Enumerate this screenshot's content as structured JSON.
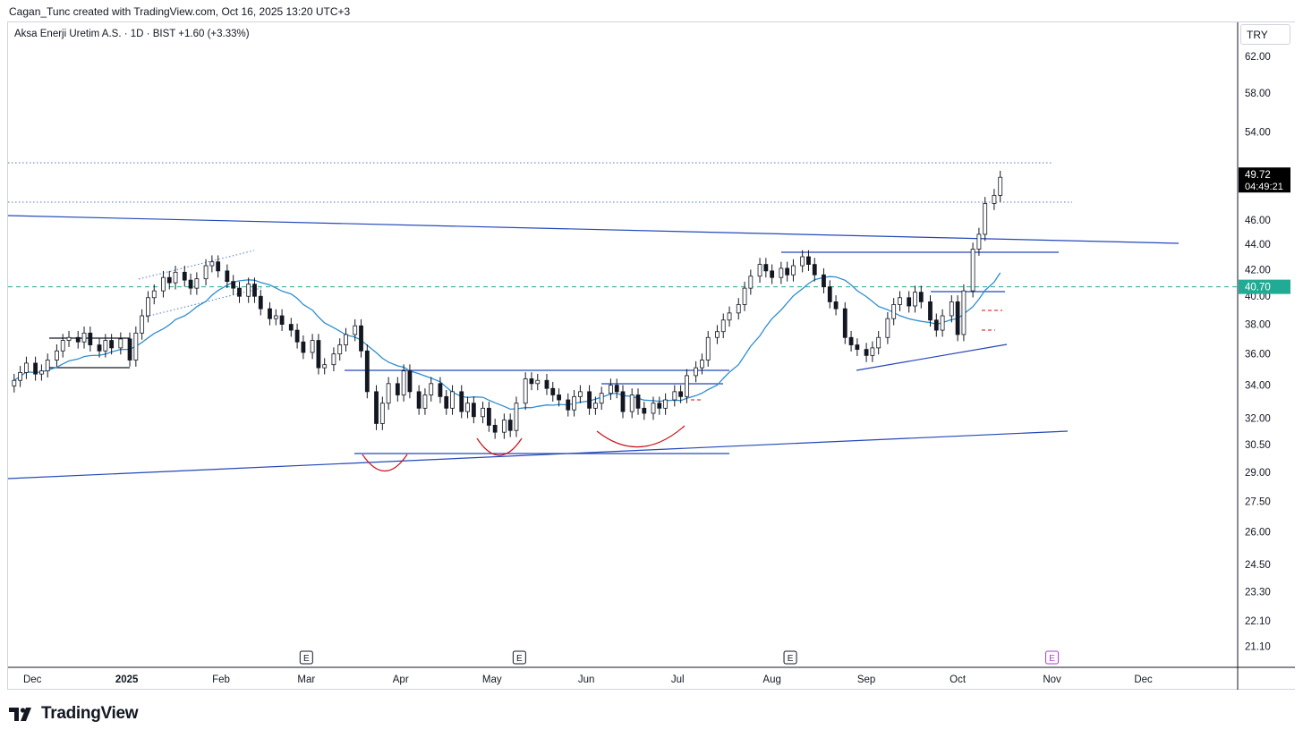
{
  "header": {
    "attribution": "Cagan_Tunc created with TradingView.com, Oct 16, 2025 13:20 UTC+3"
  },
  "symbol": {
    "name": "Aksa Enerji Uretim A.S.",
    "timeframe": "1D",
    "exchange": "BIST",
    "separator": "·",
    "change": "+1.60 (+3.33%)"
  },
  "currency": "TRY",
  "brand": {
    "name": "TradingView"
  },
  "chart_data": {
    "type": "candlestick",
    "title": "",
    "y_scale": "log",
    "ylim": [
      20.3,
      66.0
    ],
    "y_ticks": [
      "62.00",
      "58.00",
      "54.00",
      "46.00",
      "44.00",
      "42.00",
      "40.00",
      "38.00",
      "36.00",
      "34.00",
      "32.00",
      "30.50",
      "29.00",
      "27.50",
      "26.00",
      "24.50",
      "23.30",
      "22.10",
      "21.10"
    ],
    "x_ticks": [
      {
        "label": "Dec",
        "date": "2024-12-01"
      },
      {
        "label": "2025",
        "date": "2025-01-01",
        "bold": true
      },
      {
        "label": "Feb",
        "date": "2025-02-01"
      },
      {
        "label": "Mar",
        "date": "2025-03-01"
      },
      {
        "label": "Apr",
        "date": "2025-04-01"
      },
      {
        "label": "May",
        "date": "2025-05-01"
      },
      {
        "label": "Jun",
        "date": "2025-06-01"
      },
      {
        "label": "Jul",
        "date": "2025-07-01"
      },
      {
        "label": "Aug",
        "date": "2025-08-01"
      },
      {
        "label": "Sep",
        "date": "2025-09-01"
      },
      {
        "label": "Oct",
        "date": "2025-10-01"
      },
      {
        "label": "Nov",
        "date": "2025-11-01"
      },
      {
        "label": "Dec",
        "date": "2025-12-01"
      }
    ],
    "xlim": [
      "2024-11-23",
      "2026-01-01"
    ],
    "last_price": {
      "label": "49.72",
      "value": 49.72,
      "countdown": "04:49:21",
      "color": "#000000"
    },
    "reference_price": {
      "label": "40.70",
      "value": 40.7,
      "color": "#22ab94"
    },
    "earnings_markers": [
      {
        "date": "2025-03-01",
        "label": "E",
        "upcoming": false
      },
      {
        "date": "2025-05-10",
        "label": "E",
        "upcoming": false
      },
      {
        "date": "2025-08-07",
        "label": "E",
        "upcoming": false
      },
      {
        "date": "2025-11-01",
        "label": "E",
        "upcoming": true
      }
    ],
    "candles_closes": [
      [
        "2024-11-25",
        34.3
      ],
      [
        "2024-11-27",
        34.8
      ],
      [
        "2024-11-29",
        35.4
      ],
      [
        "2024-12-02",
        34.7
      ],
      [
        "2024-12-04",
        34.9
      ],
      [
        "2024-12-06",
        35.6
      ],
      [
        "2024-12-09",
        36.2
      ],
      [
        "2024-12-11",
        36.9
      ],
      [
        "2024-12-13",
        37.1
      ],
      [
        "2024-12-16",
        36.8
      ],
      [
        "2024-12-18",
        37.4
      ],
      [
        "2024-12-20",
        36.6
      ],
      [
        "2024-12-23",
        36.2
      ],
      [
        "2024-12-25",
        36.9
      ],
      [
        "2024-12-27",
        36.4
      ],
      [
        "2024-12-30",
        37.0
      ],
      [
        "2025-01-02",
        35.6
      ],
      [
        "2025-01-04",
        37.4
      ],
      [
        "2025-01-06",
        38.6
      ],
      [
        "2025-01-08",
        39.9
      ],
      [
        "2025-01-10",
        40.4
      ],
      [
        "2025-01-13",
        41.4
      ],
      [
        "2025-01-15",
        41.0
      ],
      [
        "2025-01-17",
        41.8
      ],
      [
        "2025-01-20",
        41.2
      ],
      [
        "2025-01-22",
        40.6
      ],
      [
        "2025-01-24",
        41.3
      ],
      [
        "2025-01-27",
        42.3
      ],
      [
        "2025-01-29",
        42.6
      ],
      [
        "2025-01-31",
        41.9
      ],
      [
        "2025-02-03",
        41.1
      ],
      [
        "2025-02-05",
        40.6
      ],
      [
        "2025-02-07",
        40.0
      ],
      [
        "2025-02-10",
        40.9
      ],
      [
        "2025-02-12",
        40.0
      ],
      [
        "2025-02-14",
        39.1
      ],
      [
        "2025-02-17",
        38.4
      ],
      [
        "2025-02-19",
        38.6
      ],
      [
        "2025-02-21",
        38.0
      ],
      [
        "2025-02-24",
        37.6
      ],
      [
        "2025-02-26",
        36.8
      ],
      [
        "2025-02-28",
        36.1
      ],
      [
        "2025-03-03",
        36.9
      ],
      [
        "2025-03-05",
        35.1
      ],
      [
        "2025-03-07",
        35.3
      ],
      [
        "2025-03-10",
        36.0
      ],
      [
        "2025-03-12",
        36.6
      ],
      [
        "2025-03-14",
        37.3
      ],
      [
        "2025-03-17",
        37.9
      ],
      [
        "2025-03-19",
        36.2
      ],
      [
        "2025-03-21",
        33.6
      ],
      [
        "2025-03-24",
        31.7
      ],
      [
        "2025-03-26",
        32.9
      ],
      [
        "2025-03-28",
        34.1
      ],
      [
        "2025-03-31",
        33.4
      ],
      [
        "2025-04-02",
        34.9
      ],
      [
        "2025-04-04",
        33.6
      ],
      [
        "2025-04-07",
        32.6
      ],
      [
        "2025-04-09",
        33.4
      ],
      [
        "2025-04-11",
        34.1
      ],
      [
        "2025-04-14",
        33.3
      ],
      [
        "2025-04-16",
        32.6
      ],
      [
        "2025-04-18",
        33.6
      ],
      [
        "2025-04-21",
        32.4
      ],
      [
        "2025-04-23",
        32.9
      ],
      [
        "2025-04-25",
        32.1
      ],
      [
        "2025-04-28",
        32.6
      ],
      [
        "2025-04-30",
        31.6
      ],
      [
        "2025-05-02",
        31.2
      ],
      [
        "2025-05-05",
        31.9
      ],
      [
        "2025-05-07",
        31.3
      ],
      [
        "2025-05-09",
        32.9
      ],
      [
        "2025-05-12",
        34.4
      ],
      [
        "2025-05-14",
        34.1
      ],
      [
        "2025-05-16",
        34.3
      ],
      [
        "2025-05-19",
        33.8
      ],
      [
        "2025-05-21",
        33.4
      ],
      [
        "2025-05-23",
        33.1
      ],
      [
        "2025-05-26",
        32.5
      ],
      [
        "2025-05-28",
        33.3
      ],
      [
        "2025-05-30",
        33.6
      ],
      [
        "2025-06-02",
        32.6
      ],
      [
        "2025-06-04",
        32.9
      ],
      [
        "2025-06-06",
        33.5
      ],
      [
        "2025-06-09",
        34.0
      ],
      [
        "2025-06-11",
        33.6
      ],
      [
        "2025-06-13",
        32.4
      ],
      [
        "2025-06-16",
        33.4
      ],
      [
        "2025-06-18",
        32.6
      ],
      [
        "2025-06-20",
        32.3
      ],
      [
        "2025-06-23",
        32.9
      ],
      [
        "2025-06-25",
        32.6
      ],
      [
        "2025-06-27",
        33.1
      ],
      [
        "2025-06-30",
        33.6
      ],
      [
        "2025-07-02",
        33.3
      ],
      [
        "2025-07-04",
        34.6
      ],
      [
        "2025-07-07",
        35.1
      ],
      [
        "2025-07-09",
        35.6
      ],
      [
        "2025-07-11",
        37.1
      ],
      [
        "2025-07-14",
        37.5
      ],
      [
        "2025-07-16",
        38.3
      ],
      [
        "2025-07-18",
        38.8
      ],
      [
        "2025-07-21",
        39.4
      ],
      [
        "2025-07-23",
        40.6
      ],
      [
        "2025-07-25",
        41.5
      ],
      [
        "2025-07-28",
        42.4
      ],
      [
        "2025-07-30",
        41.9
      ],
      [
        "2025-08-01",
        41.4
      ],
      [
        "2025-08-04",
        42.1
      ],
      [
        "2025-08-06",
        41.6
      ],
      [
        "2025-08-08",
        42.3
      ],
      [
        "2025-08-11",
        43.0
      ],
      [
        "2025-08-13",
        42.4
      ],
      [
        "2025-08-15",
        41.6
      ],
      [
        "2025-08-18",
        40.7
      ],
      [
        "2025-08-20",
        39.6
      ],
      [
        "2025-08-22",
        39.1
      ],
      [
        "2025-08-25",
        37.1
      ],
      [
        "2025-08-27",
        36.6
      ],
      [
        "2025-08-29",
        36.3
      ],
      [
        "2025-09-01",
        35.9
      ],
      [
        "2025-09-03",
        36.4
      ],
      [
        "2025-09-05",
        37.1
      ],
      [
        "2025-09-08",
        38.4
      ],
      [
        "2025-09-10",
        39.4
      ],
      [
        "2025-09-12",
        39.9
      ],
      [
        "2025-09-15",
        39.3
      ],
      [
        "2025-09-17",
        40.3
      ],
      [
        "2025-09-19",
        39.6
      ],
      [
        "2025-09-22",
        38.3
      ],
      [
        "2025-09-24",
        37.6
      ],
      [
        "2025-09-26",
        38.6
      ],
      [
        "2025-09-29",
        39.6
      ],
      [
        "2025-10-01",
        37.3
      ],
      [
        "2025-10-03",
        40.4
      ],
      [
        "2025-10-06",
        43.6
      ],
      [
        "2025-10-08",
        44.8
      ],
      [
        "2025-10-10",
        47.4
      ],
      [
        "2025-10-13",
        48.1
      ],
      [
        "2025-10-15",
        49.72
      ]
    ],
    "ma_series_color": "#2e8ecf",
    "candle_up_color": "#ffffff",
    "candle_down_color": "#131722",
    "drawing_color": "#2448b8",
    "arc_color": "#c8141e"
  }
}
